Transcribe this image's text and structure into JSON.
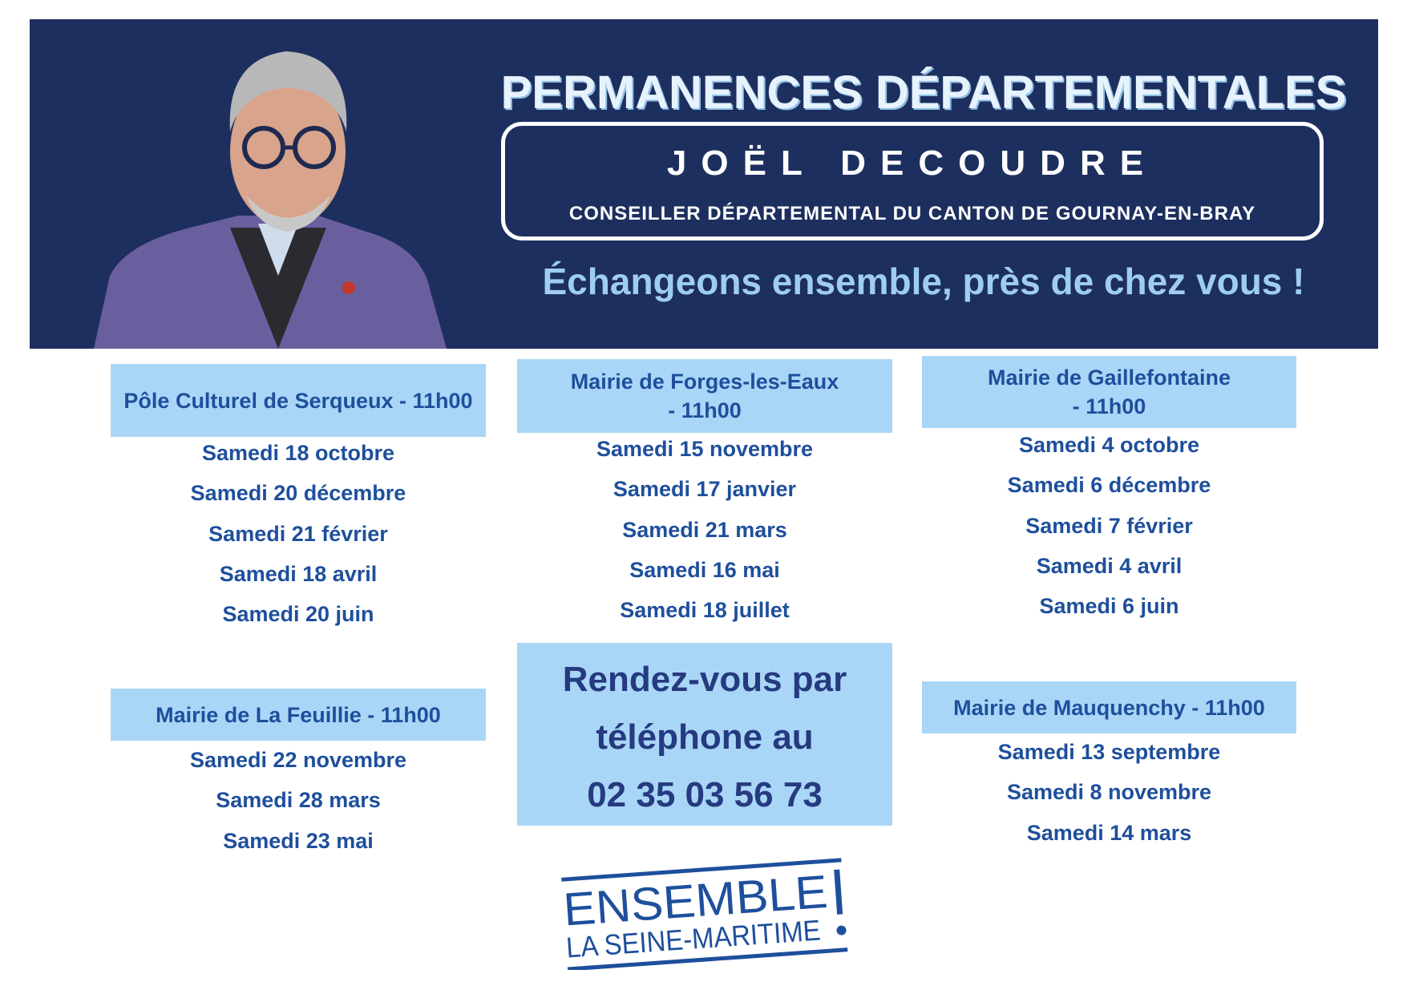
{
  "header": {
    "title": "PERMANENCES DÉPARTEMENTALES",
    "name": "JOËL DECOUDRE",
    "role": "CONSEILLER DÉPARTEMENTAL DU CANTON DE GOURNAY-EN-BRAY",
    "tagline": "Échangeons ensemble, près de chez vous !"
  },
  "sessions": [
    {
      "place": "Pôle Culturel de Serqueux - 11h00",
      "dates": [
        "Samedi 18 octobre",
        "Samedi 20 décembre",
        "Samedi 21 février",
        "Samedi 18 avril",
        "Samedi 20 juin"
      ]
    },
    {
      "place": "Mairie de Forges-les-Eaux - 11h00",
      "dates": [
        "Samedi 15 novembre",
        "Samedi 17 janvier",
        "Samedi 21 mars",
        "Samedi 16 mai",
        "Samedi 18 juillet"
      ]
    },
    {
      "place": "Mairie de Gaillefontaine - 11h00",
      "dates": [
        "Samedi 4 octobre",
        "Samedi 6 décembre",
        "Samedi 7 février",
        "Samedi 4 avril",
        "Samedi 6 juin"
      ]
    },
    {
      "place": "Mairie de La Feuillie - 11h00",
      "dates": [
        "Samedi 22 novembre",
        "Samedi 28 mars",
        "Samedi 23 mai"
      ]
    },
    {
      "place": "Mairie de Mauquenchy - 11h00",
      "dates": [
        "Samedi 13 septembre",
        "Samedi 8 novembre",
        "Samedi 14 mars"
      ]
    }
  ],
  "contact": {
    "line1": "Rendez-vous par",
    "line2": "téléphone au",
    "phone": "02 35 03 56 73"
  },
  "logo": {
    "line1": "ENSEMBLE",
    "line2": "LA SEINE-MARITIME"
  },
  "colors": {
    "banner": "#1d2f5e",
    "box": "#a9d6f7",
    "text": "#1e4f9c",
    "phone_text": "#263a7f"
  }
}
